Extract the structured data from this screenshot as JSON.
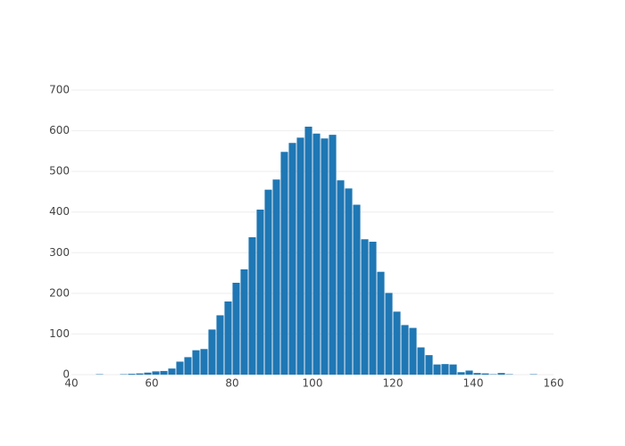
{
  "chart_data": {
    "type": "histogram",
    "bins": [
      46,
      48,
      50,
      52,
      54,
      56,
      58,
      60,
      62,
      64,
      66,
      68,
      70,
      72,
      74,
      76,
      78,
      80,
      82,
      84,
      86,
      88,
      90,
      92,
      94,
      96,
      98,
      100,
      102,
      104,
      106,
      108,
      110,
      112,
      114,
      116,
      118,
      120,
      122,
      124,
      126,
      128,
      130,
      132,
      134,
      136,
      138,
      140,
      142,
      144,
      146,
      148,
      150,
      152,
      154,
      156,
      158
    ],
    "values": [
      1,
      0,
      0,
      1,
      2,
      3,
      5,
      8,
      9,
      15,
      32,
      43,
      60,
      63,
      111,
      146,
      180,
      226,
      259,
      338,
      406,
      455,
      480,
      548,
      570,
      583,
      610,
      593,
      581,
      590,
      478,
      458,
      418,
      333,
      327,
      253,
      201,
      155,
      122,
      115,
      67,
      48,
      25,
      26,
      25,
      6,
      10,
      4,
      3,
      1,
      4,
      1,
      0,
      0,
      1,
      0
    ],
    "color": "#1f77b4",
    "xlim": [
      40,
      160
    ],
    "xticks": [
      40,
      60,
      80,
      100,
      120,
      140,
      160
    ],
    "ylim": [
      0,
      700
    ],
    "yticks": [
      0,
      100,
      200,
      300,
      400,
      500,
      600,
      700
    ],
    "grid": true
  }
}
